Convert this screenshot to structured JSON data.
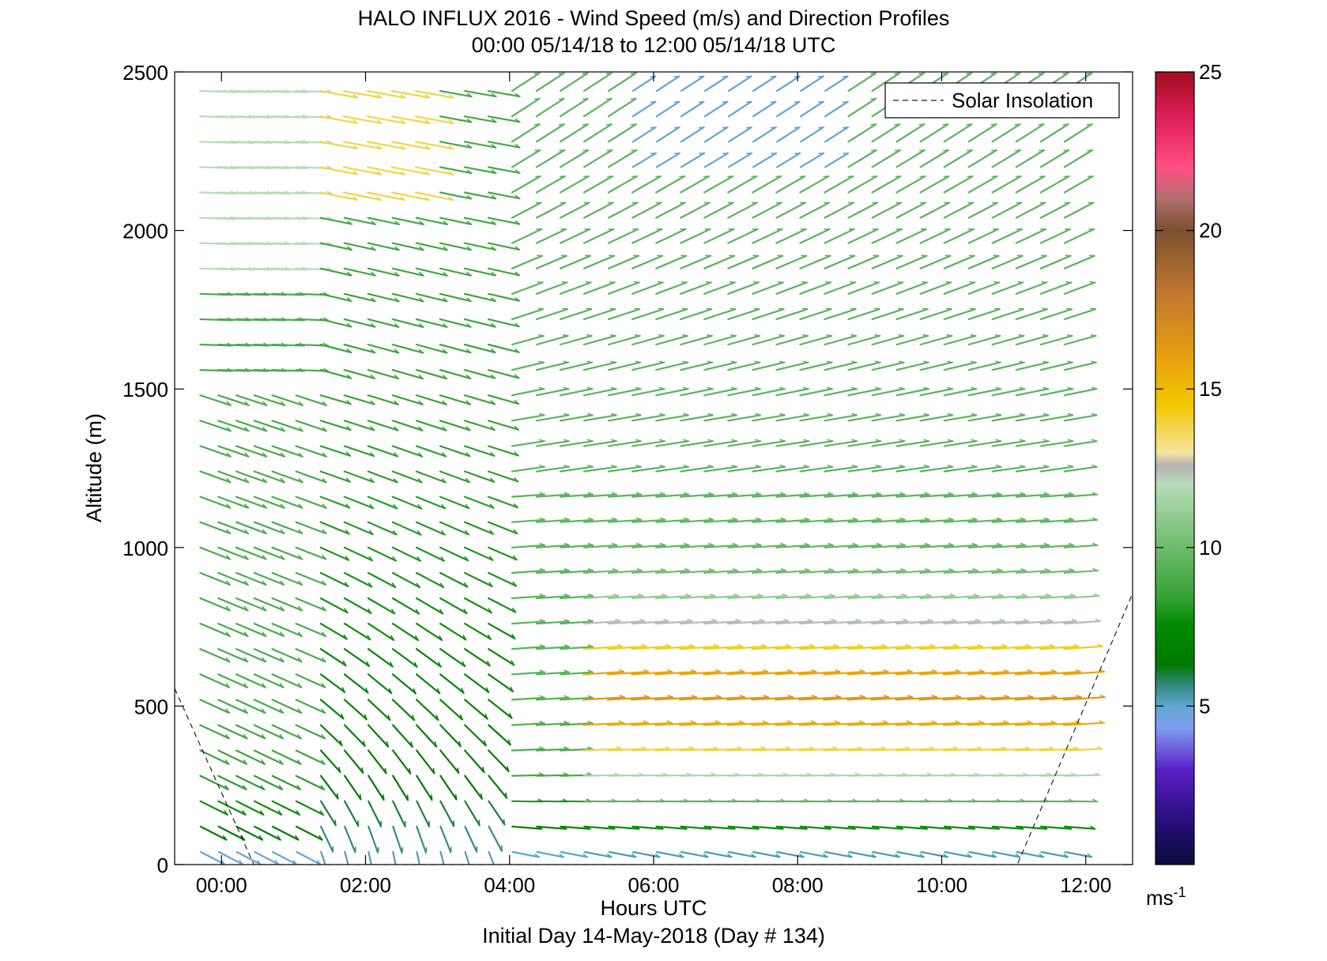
{
  "chart_data": {
    "type": "quiver",
    "title": "HALO INFLUX 2016 - Wind Speed (m/s) and Direction Profiles",
    "subtitle": "00:00 05/14/18 to 12:00 05/14/18  UTC",
    "xlabel": "Hours UTC",
    "footer": "Initial Day 14-May-2018 (Day # 134)",
    "ylabel": "Altitude (m)",
    "xlim": [
      -0.65,
      12.65
    ],
    "ylim": [
      0,
      2500
    ],
    "x_ticks": [
      0,
      2,
      4,
      6,
      8,
      10,
      12
    ],
    "x_tick_labels": [
      "00:00",
      "02:00",
      "04:00",
      "06:00",
      "08:00",
      "10:00",
      "12:00"
    ],
    "y_ticks": [
      0,
      500,
      1000,
      1500,
      2000,
      2500
    ],
    "y_tick_labels": [
      "0",
      "500",
      "1000",
      "1500",
      "2000",
      "2500"
    ],
    "legend": {
      "label": "Solar Insolation",
      "position": "top-right"
    },
    "solar_insolation": {
      "x": [
        -0.65,
        0.45,
        11.05,
        12.65
      ],
      "y": [
        555,
        0,
        0,
        855
      ]
    },
    "colorbar": {
      "min": 0,
      "max": 25,
      "ticks": [
        5,
        10,
        15,
        20,
        25
      ],
      "tick_labels": [
        "5",
        "10",
        "15",
        "20",
        "25"
      ],
      "unit": "ms",
      "unit_exponent": "-1",
      "stops": [
        {
          "v": 0,
          "c": "#0a0a3a"
        },
        {
          "v": 1.5,
          "c": "#2a1080"
        },
        {
          "v": 3,
          "c": "#5a20c8"
        },
        {
          "v": 4.3,
          "c": "#7f9ef0"
        },
        {
          "v": 5,
          "c": "#5fa8d0"
        },
        {
          "v": 5.7,
          "c": "#2f8878"
        },
        {
          "v": 6.3,
          "c": "#007800"
        },
        {
          "v": 7.5,
          "c": "#008a00"
        },
        {
          "v": 8.5,
          "c": "#3aa33a"
        },
        {
          "v": 10,
          "c": "#6dbb6d"
        },
        {
          "v": 12,
          "c": "#b8dcb8"
        },
        {
          "v": 12.6,
          "c": "#b4b4b4"
        },
        {
          "v": 13,
          "c": "#f4e4a0"
        },
        {
          "v": 14.5,
          "c": "#f2c800"
        },
        {
          "v": 16,
          "c": "#e89f10"
        },
        {
          "v": 18,
          "c": "#c07830"
        },
        {
          "v": 20,
          "c": "#7a5030"
        },
        {
          "v": 21,
          "c": "#b07070"
        },
        {
          "v": 22,
          "c": "#ff5080"
        },
        {
          "v": 23.5,
          "c": "#e0205a"
        },
        {
          "v": 25,
          "c": "#a01020"
        }
      ]
    },
    "profile_times_hours": [
      -0.25,
      0,
      0.25,
      0.5,
      0.75,
      1.08,
      1.42,
      1.75,
      2.08,
      2.42,
      2.75,
      3.08,
      3.42,
      3.75,
      4.08,
      4.42,
      4.75,
      5.08,
      5.42,
      5.75,
      6.08,
      6.42,
      6.75,
      7.08,
      7.42,
      7.75,
      8.08,
      8.42,
      8.75,
      9.08,
      9.42,
      9.75,
      10.08,
      10.42,
      10.75,
      11.08,
      11.42,
      11.75
    ],
    "altitudes_m": [
      40,
      120,
      200,
      280,
      360,
      440,
      520,
      600,
      680,
      760,
      840,
      920,
      1000,
      1080,
      1160,
      1240,
      1320,
      1400,
      1480,
      1560,
      1640,
      1720,
      1800,
      1880,
      1960,
      2040,
      2120,
      2200,
      2280,
      2360,
      2440
    ]
  }
}
